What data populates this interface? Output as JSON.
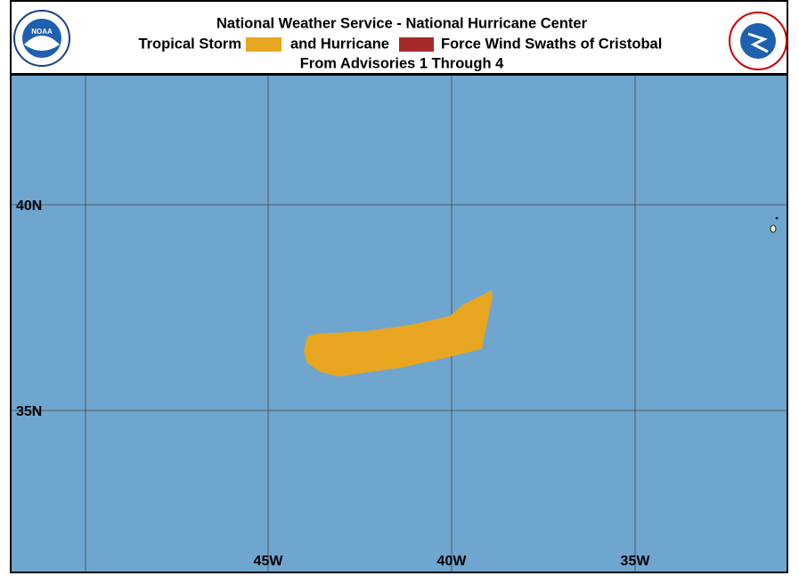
{
  "header": {
    "title": "National Weather Service - National Hurricane Center",
    "legend": {
      "prefix": "Tropical Storm",
      "middle": "and Hurricane",
      "suffix": "Force Wind Swaths of Cristobal"
    },
    "subtitle": "From Advisories 1 Through 4"
  },
  "map": {
    "lat_labels": [
      "40N",
      "35N"
    ],
    "lon_labels": [
      "45W",
      "40W",
      "35W"
    ]
  }
}
